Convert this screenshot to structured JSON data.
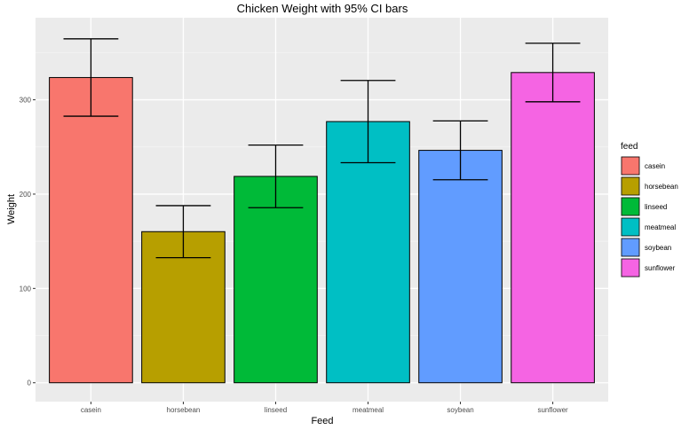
{
  "chart_data": {
    "type": "bar",
    "title": "Chicken Weight with 95% CI bars",
    "xlabel": "Feed",
    "ylabel": "Weight",
    "categories": [
      "casein",
      "horsebean",
      "linseed",
      "meatmeal",
      "soybean",
      "sunflower"
    ],
    "values": [
      323.6,
      160.2,
      218.8,
      276.9,
      246.4,
      328.9
    ],
    "ci_lower": [
      282.6,
      132.6,
      185.6,
      233.3,
      215.2,
      297.9
    ],
    "ci_upper": [
      364.6,
      187.8,
      252.0,
      320.5,
      277.6,
      360.0
    ],
    "colors": [
      "#F8766D",
      "#B79F00",
      "#00BA38",
      "#00BFC4",
      "#619CFF",
      "#F564E3"
    ],
    "ylim": [
      -20,
      387
    ],
    "yticks": [
      0,
      100,
      200,
      300
    ],
    "grid": true,
    "legend": {
      "title": "feed",
      "placement": "right",
      "entries": [
        "casein",
        "horsebean",
        "linseed",
        "meatmeal",
        "soybean",
        "sunflower"
      ]
    }
  }
}
